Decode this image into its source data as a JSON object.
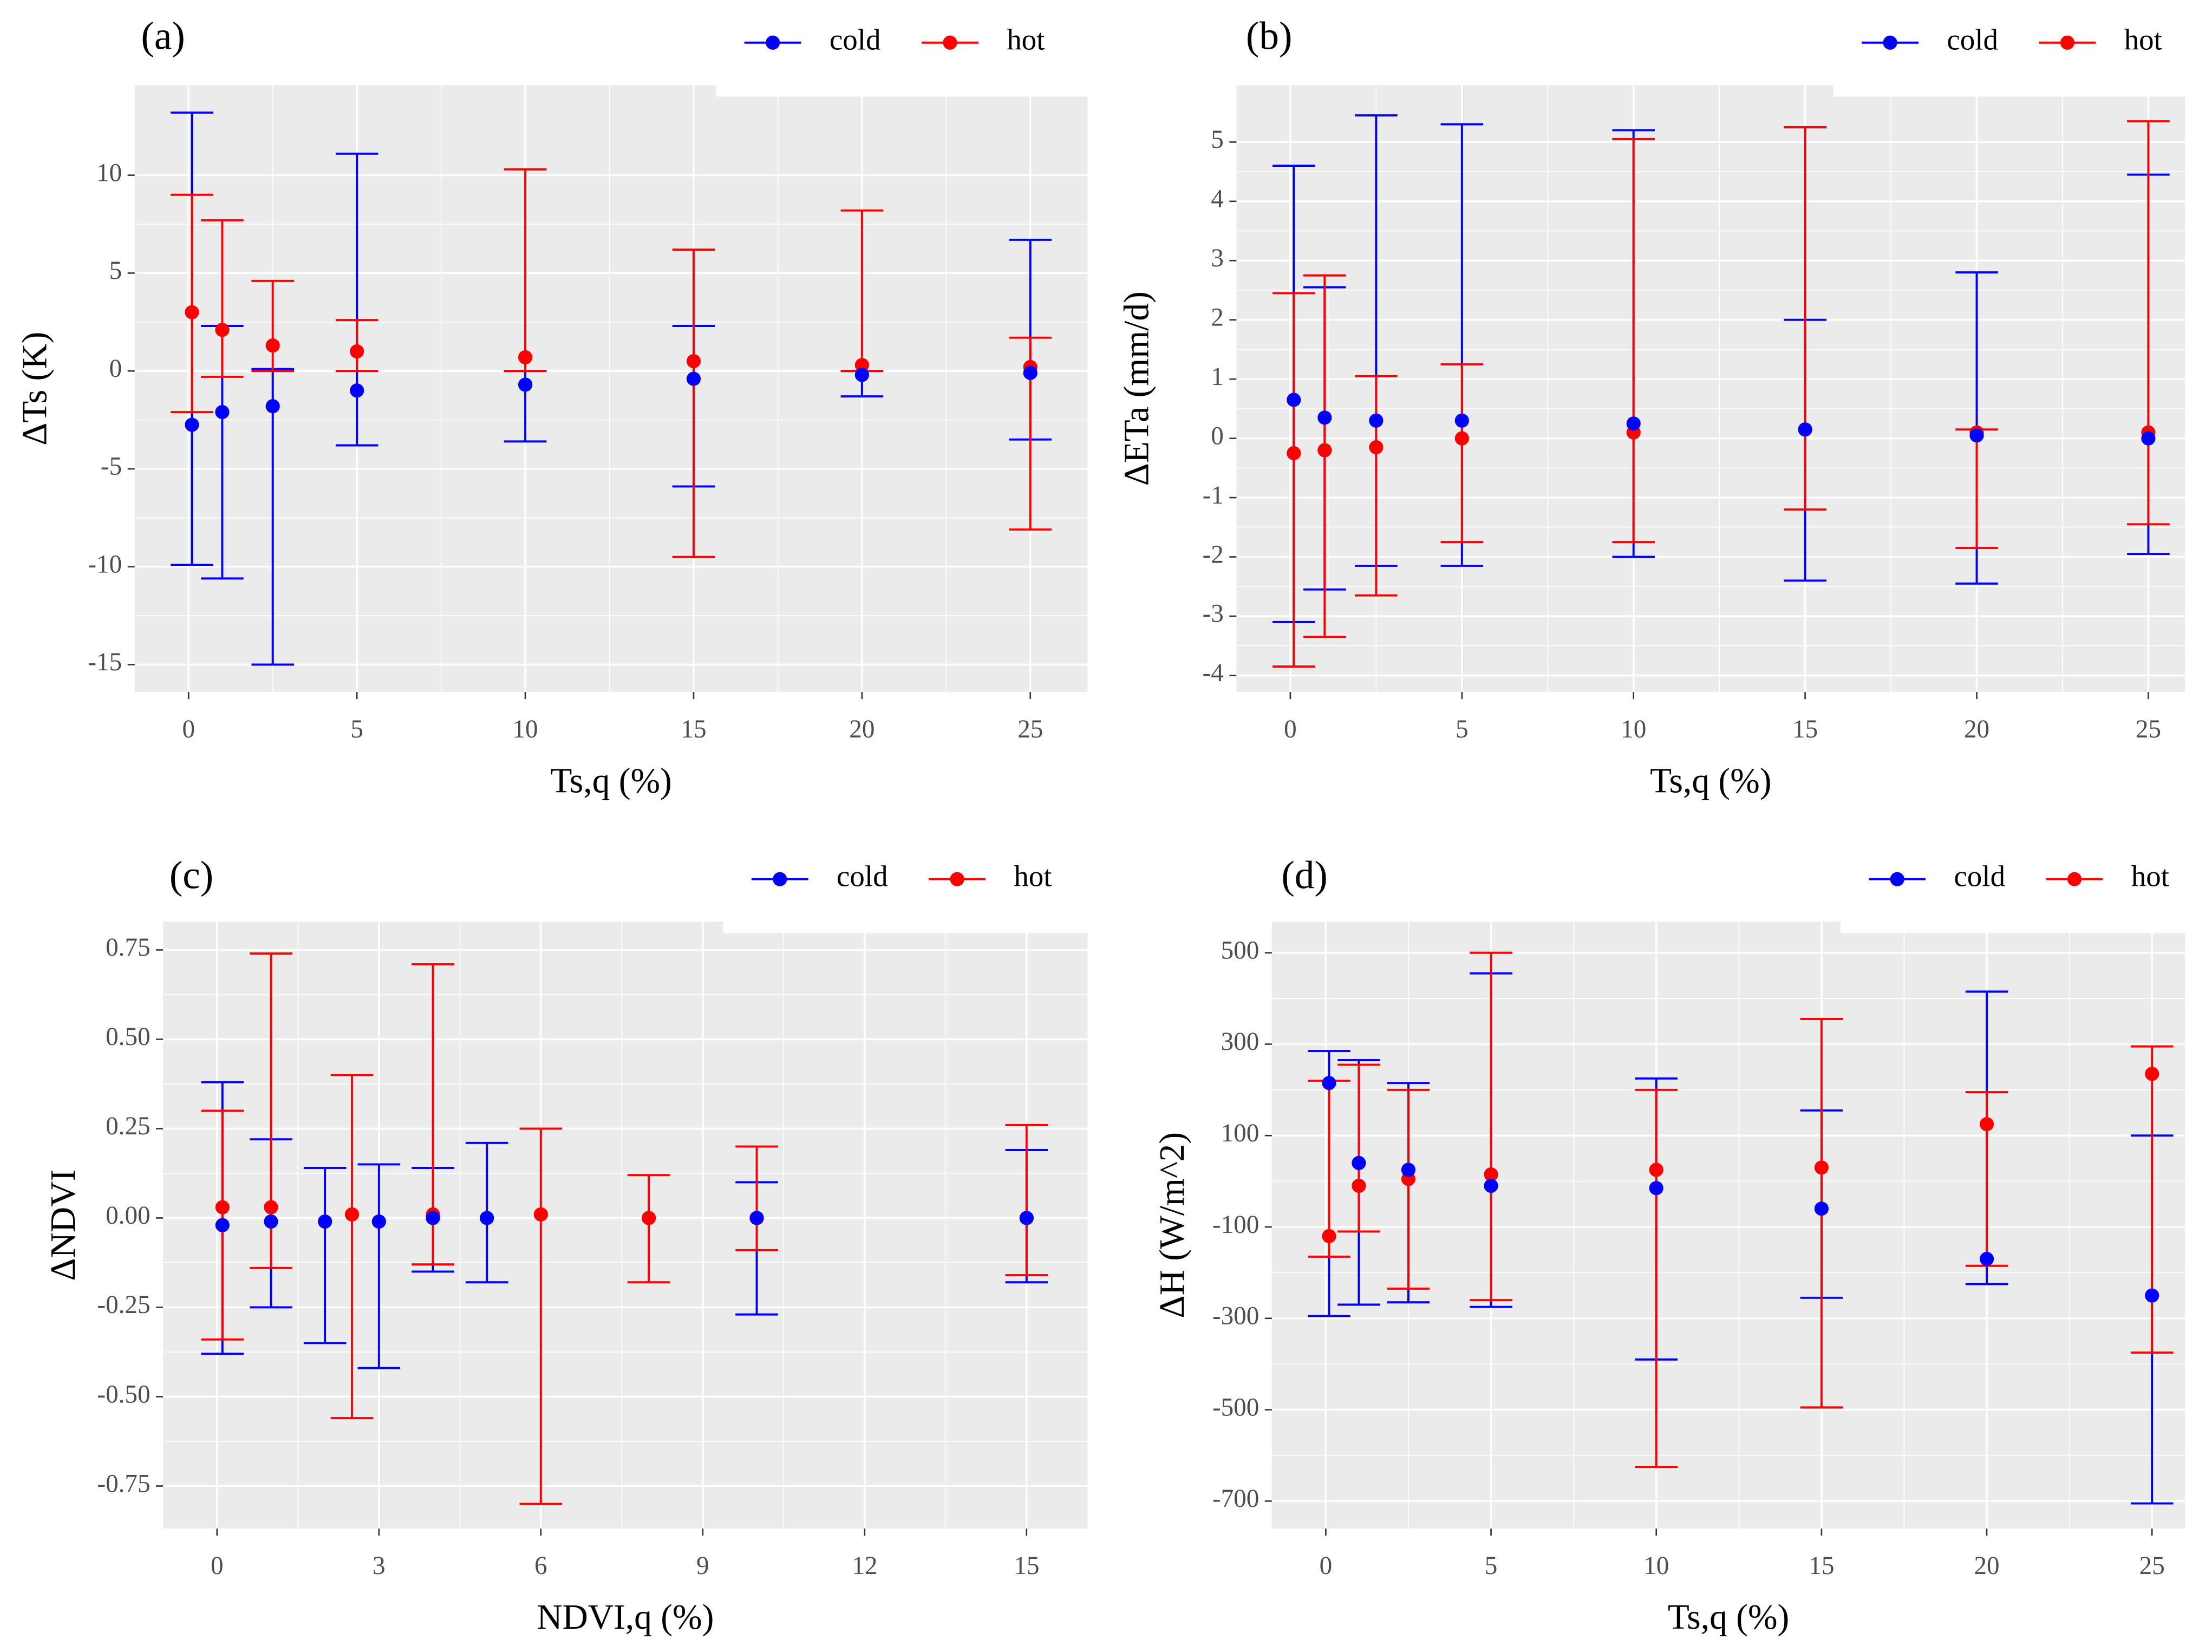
{
  "chart_data": [
    {
      "type": "errorbar",
      "panel_label": "(a)",
      "x_label": "Ts,q (%)",
      "y_label": "ΔTs (K)",
      "xlim": [
        -1.6,
        26.7
      ],
      "ylim": [
        -16.4,
        14.6
      ],
      "xticks": [
        0,
        5,
        10,
        15,
        20,
        25
      ],
      "yticks": [
        -15,
        -10,
        -5,
        0,
        5,
        10
      ],
      "grid": true,
      "series": [
        {
          "name": "cold",
          "color": "#0000ff",
          "x": [
            0.1,
            1,
            2.5,
            5,
            10,
            15,
            20,
            25
          ],
          "values": [
            -2.75,
            -2.1,
            -1.8,
            -1.0,
            -0.7,
            -0.4,
            -0.2,
            -0.1
          ],
          "ymin": [
            -9.9,
            -10.6,
            -15,
            -3.8,
            -3.6,
            -5.9,
            -1.3,
            -3.5
          ],
          "ymax": [
            13.2,
            2.3,
            0.1,
            11.1,
            0.0,
            2.3,
            0.0,
            6.7
          ]
        },
        {
          "name": "hot",
          "color": "#ff0000",
          "x": [
            0.1,
            1,
            2.5,
            5,
            10,
            15,
            20,
            25
          ],
          "values": [
            3.0,
            2.1,
            1.3,
            1.0,
            0.7,
            0.5,
            0.3,
            0.2
          ],
          "ymin": [
            -2.1,
            -0.3,
            0.0,
            0.0,
            0.0,
            -9.5,
            0.0,
            -8.1
          ],
          "ymax": [
            9.0,
            7.7,
            4.6,
            2.6,
            10.3,
            6.2,
            8.2,
            1.7
          ]
        }
      ]
    },
    {
      "type": "errorbar",
      "panel_label": "(b)",
      "x_label": "Ts,q (%)",
      "y_label": "ΔETa (mm/d)",
      "xlim": [
        -1.57,
        26.07
      ],
      "ylim": [
        -4.28,
        5.96
      ],
      "xticks": [
        0,
        5,
        10,
        15,
        20,
        25
      ],
      "yticks": [
        -4,
        -3,
        -2,
        -1,
        0,
        1,
        2,
        3,
        4,
        5
      ],
      "grid": true,
      "series": [
        {
          "name": "cold",
          "color": "#0000ff",
          "x": [
            0.1,
            1,
            2.5,
            5,
            10,
            15,
            20,
            25
          ],
          "values": [
            0.65,
            0.35,
            0.3,
            0.3,
            0.25,
            0.15,
            0.05,
            0.0
          ],
          "ymin": [
            -3.1,
            -2.55,
            -2.15,
            -2.15,
            -2.0,
            -2.4,
            -2.45,
            -1.95
          ],
          "ymax": [
            4.6,
            2.55,
            5.45,
            5.3,
            5.2,
            2.0,
            2.8,
            4.45
          ]
        },
        {
          "name": "hot",
          "color": "#ff0000",
          "x": [
            0.1,
            1,
            2.5,
            5,
            10,
            15,
            20,
            25
          ],
          "values": [
            -0.25,
            -0.2,
            -0.15,
            0.0,
            0.1,
            0.15,
            0.1,
            0.1
          ],
          "ymin": [
            -3.85,
            -3.35,
            -2.65,
            -1.75,
            -1.75,
            -1.2,
            -1.85,
            -1.45
          ],
          "ymax": [
            2.45,
            2.75,
            1.05,
            1.25,
            5.05,
            5.25,
            0.15,
            5.35
          ]
        }
      ]
    },
    {
      "type": "errorbar",
      "panel_label": "(c)",
      "x_label": "NDVI,q (%)",
      "y_label": "ΔNDVI",
      "xlim": [
        -1.0,
        16.13
      ],
      "ylim": [
        -0.869,
        0.829
      ],
      "xticks": [
        0,
        3,
        6,
        9,
        12,
        15
      ],
      "yticks": [
        -0.75,
        {
          "value": -0.5,
          "label": "-0.50"
        },
        -0.25,
        {
          "value": 0,
          "label": "0.00"
        },
        0.25,
        {
          "value": 0.5,
          "label": "0.50"
        },
        0.75
      ],
      "grid": true,
      "series": [
        {
          "name": "cold",
          "color": "#0000ff",
          "x": [
            0.1,
            1,
            2,
            3,
            4,
            5,
            10,
            15
          ],
          "values": [
            -0.02,
            -0.01,
            -0.01,
            -0.01,
            0.0,
            0.0,
            0.0,
            0.0
          ],
          "ymin": [
            -0.38,
            -0.25,
            -0.35,
            -0.42,
            -0.15,
            -0.18,
            -0.27,
            -0.18
          ],
          "ymax": [
            0.38,
            0.22,
            0.14,
            0.15,
            0.14,
            0.21,
            0.1,
            0.19
          ]
        },
        {
          "name": "hot",
          "color": "#ff0000",
          "x": [
            0.1,
            1,
            2.5,
            4,
            6,
            8,
            10,
            15
          ],
          "values": [
            0.03,
            0.03,
            0.01,
            0.01,
            0.01,
            0.0,
            0.0,
            0.0
          ],
          "ymin": [
            -0.34,
            -0.14,
            -0.56,
            -0.13,
            -0.8,
            -0.18,
            -0.09,
            -0.16
          ],
          "ymax": [
            0.3,
            0.74,
            0.4,
            0.71,
            0.25,
            0.12,
            0.2,
            0.26
          ]
        }
      ]
    },
    {
      "type": "errorbar",
      "panel_label": "(d)",
      "x_label": "Ts,q (%)",
      "y_label": "ΔH (W/m^2)",
      "xlim": [
        -1.63,
        26.0
      ],
      "ylim": [
        -760,
        568
      ],
      "xticks": [
        0,
        5,
        10,
        15,
        20,
        25
      ],
      "yticks": [
        -700,
        -500,
        -300,
        -100,
        100,
        300,
        500
      ],
      "grid": true,
      "series": [
        {
          "name": "cold",
          "color": "#0000ff",
          "x": [
            0.1,
            1,
            2.5,
            5,
            10,
            15,
            20,
            25
          ],
          "values": [
            215,
            40,
            25,
            -10,
            -15,
            -60,
            -170,
            -250
          ],
          "ymin": [
            -295,
            -270,
            -265,
            -275,
            -390,
            -255,
            -225,
            -705
          ],
          "ymax": [
            285,
            265,
            215,
            455,
            225,
            155,
            415,
            100
          ]
        },
        {
          "name": "hot",
          "color": "#ff0000",
          "x": [
            0.1,
            1,
            2.5,
            5,
            10,
            15,
            20,
            25
          ],
          "values": [
            -120,
            -10,
            5,
            15,
            25,
            30,
            125,
            235
          ],
          "ymin": [
            -165,
            -110,
            -235,
            -260,
            -625,
            -495,
            -185,
            -375
          ],
          "ymax": [
            220,
            255,
            200,
            500,
            200,
            355,
            195,
            295
          ]
        }
      ]
    }
  ]
}
